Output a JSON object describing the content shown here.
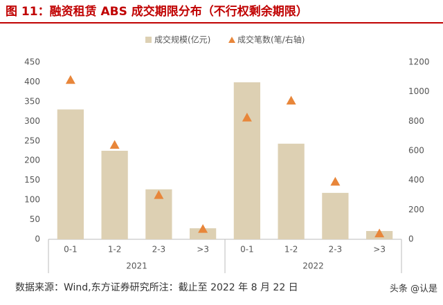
{
  "chart_data": {
    "type": "bar",
    "title": "图 11：融资租赁 ABS 成交期限分布（不行权剩余期限）",
    "categories": [
      "0-1",
      "1-2",
      "2-3",
      ">3",
      "0-1",
      "1-2",
      "2-3",
      ">3"
    ],
    "groups": [
      "2021",
      "2022"
    ],
    "series": [
      {
        "name": "成交规模(亿元)",
        "type": "bar",
        "color": "#ddd0b3",
        "values": [
          330,
          225,
          127,
          28,
          399,
          243,
          118,
          21
        ]
      },
      {
        "name": "成交笔数(笔/右轴)",
        "type": "scatter",
        "axis": "y2",
        "color": "#e8863a",
        "values": [
          1080,
          640,
          300,
          70,
          825,
          940,
          390,
          40
        ]
      }
    ],
    "ylim": [
      0,
      450
    ],
    "yticks": [
      0,
      50,
      100,
      150,
      200,
      250,
      300,
      350,
      400,
      450
    ],
    "y2lim": [
      0,
      1200
    ],
    "y2ticks": [
      0,
      200,
      400,
      600,
      800,
      1000,
      1200
    ],
    "legend": "top",
    "source": "数据来源：Wind,东方证券研究所注：截止至 2022 年 8 月 22 日",
    "watermark": "头条 @认是"
  }
}
